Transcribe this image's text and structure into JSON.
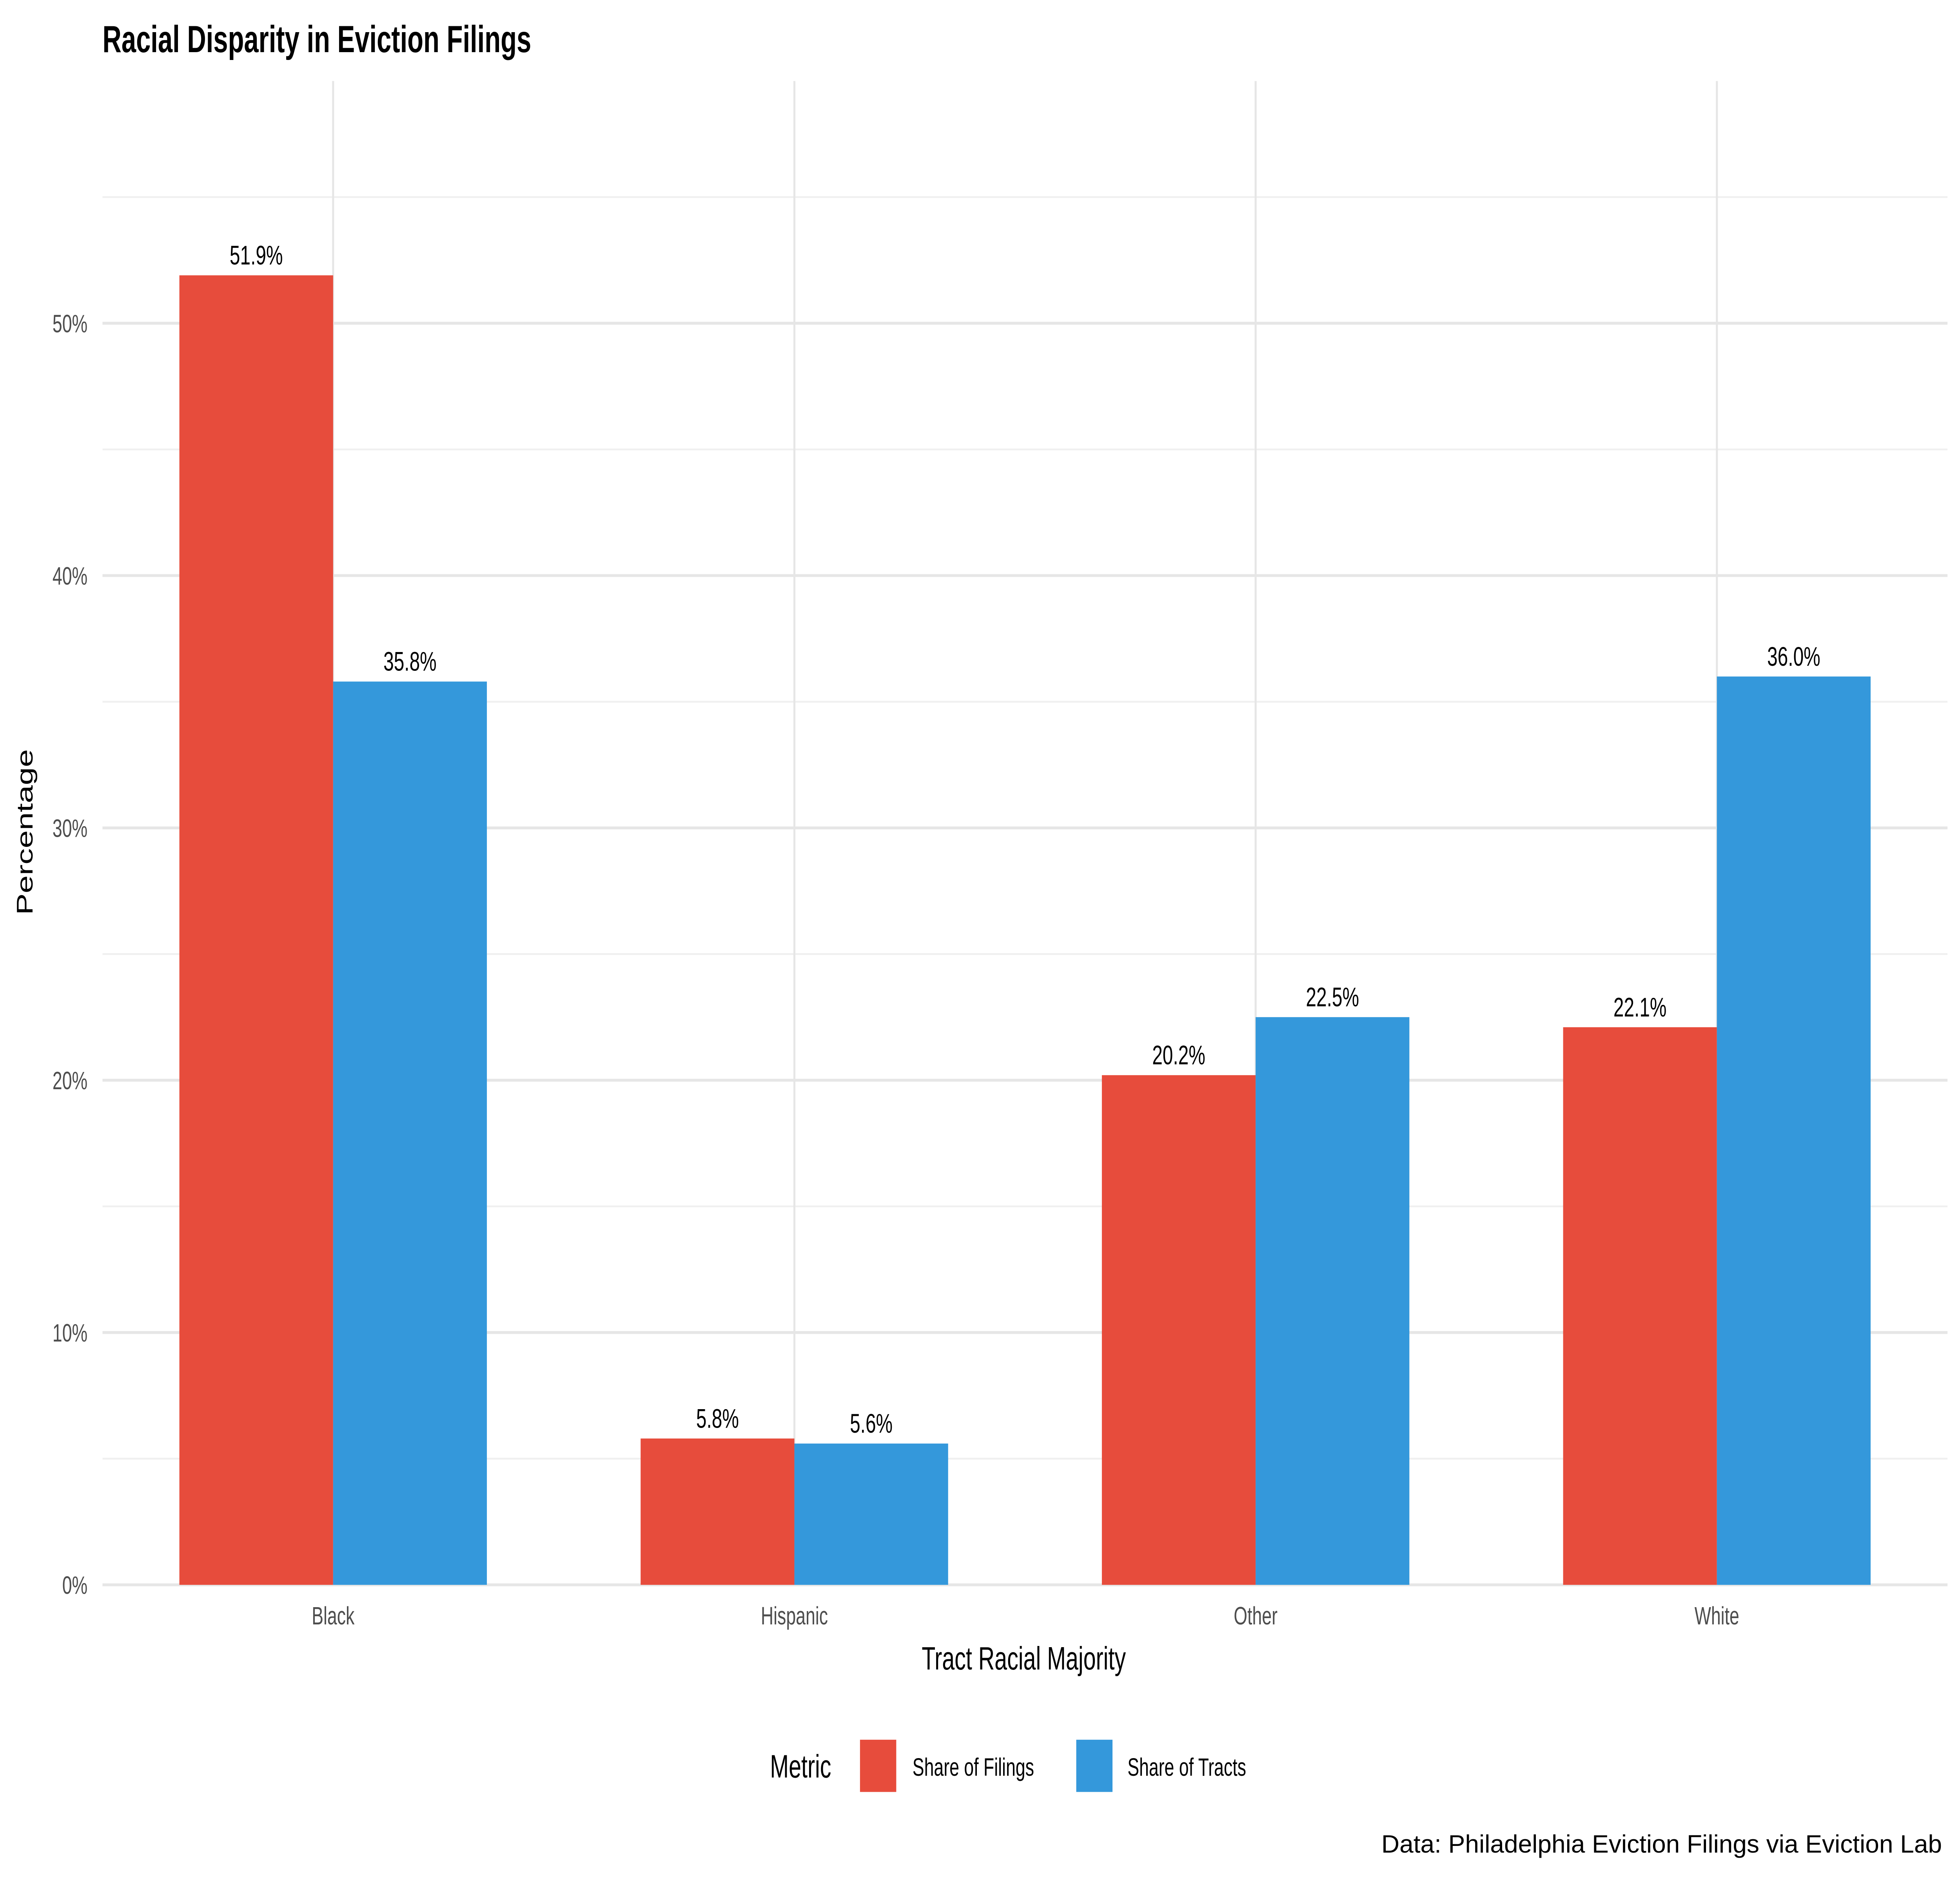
{
  "chart_data": {
    "type": "bar",
    "title": "Racial Disparity in Eviction Filings",
    "xlabel": "Tract Racial Majority",
    "ylabel": "Percentage",
    "caption": "Data: Philadelphia Eviction Filings via Eviction Lab",
    "categories": [
      "Black",
      "Hispanic",
      "Other",
      "White"
    ],
    "series": [
      {
        "name": "Share of Filings",
        "color": "#E74C3C",
        "values": [
          51.9,
          5.8,
          20.2,
          22.1
        ],
        "labels": [
          "51.9%",
          "5.8%",
          "20.2%",
          "22.1%"
        ]
      },
      {
        "name": "Share of Tracts",
        "color": "#3498DB",
        "values": [
          35.8,
          5.6,
          22.5,
          36.0
        ],
        "labels": [
          "35.8%",
          "5.6%",
          "22.5%",
          "36.0%"
        ]
      }
    ],
    "ylim": [
      0,
      59.6
    ],
    "yticks": [
      0,
      10,
      20,
      30,
      40,
      50
    ],
    "ytick_labels": [
      "0%",
      "10%",
      "20%",
      "30%",
      "40%",
      "50%"
    ],
    "grid": true,
    "legend": {
      "title": "Metric",
      "placement": "bottom"
    }
  }
}
